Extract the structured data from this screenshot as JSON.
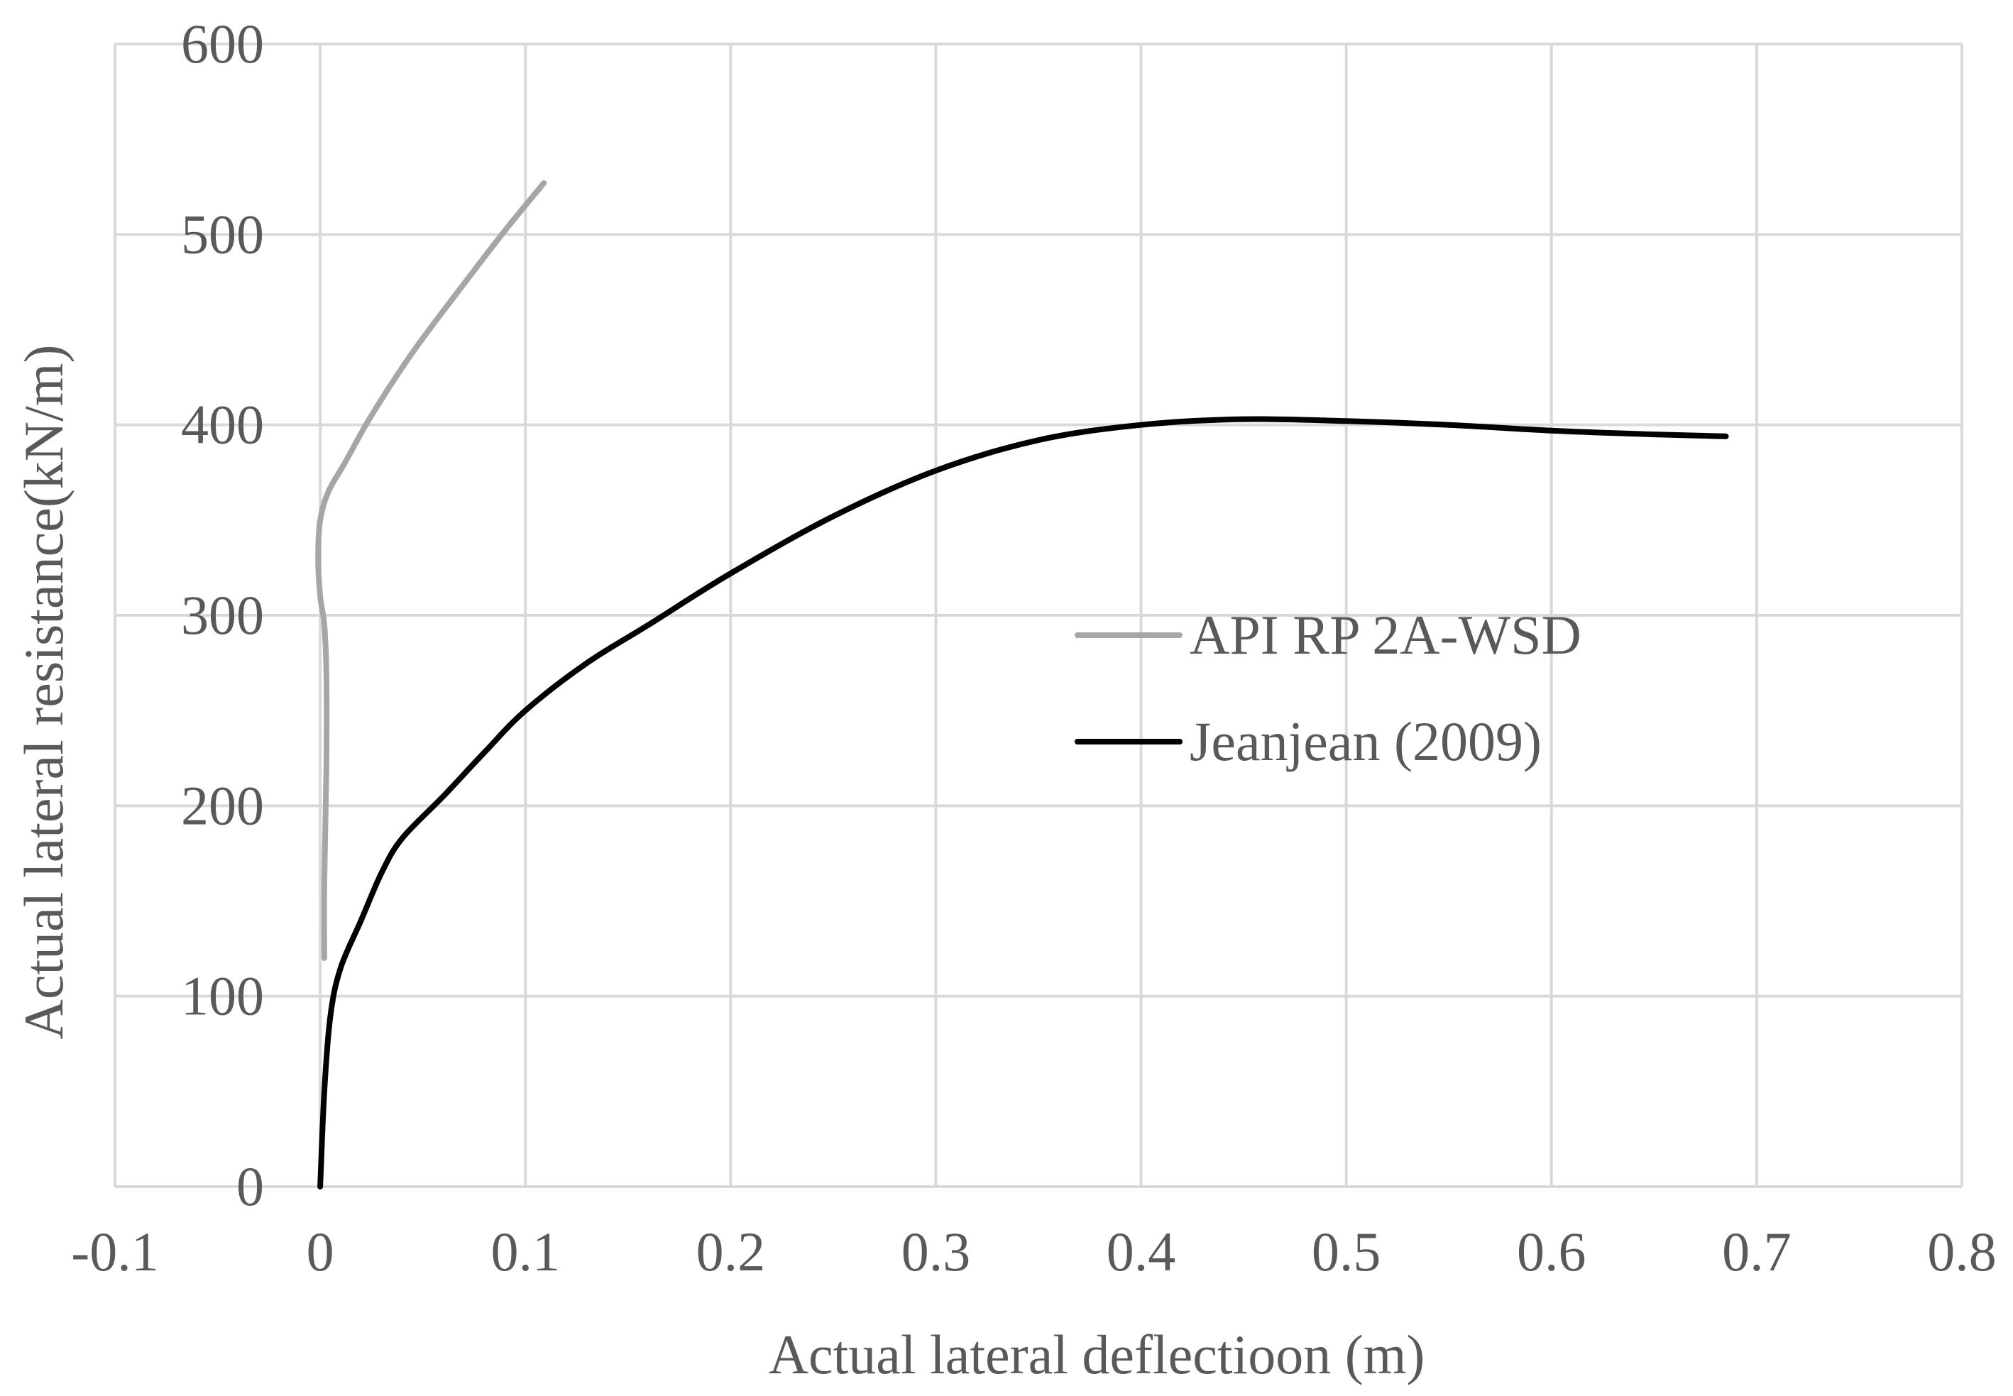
{
  "chart_data": {
    "type": "line",
    "title": "",
    "xlabel": "Actual lateral  deflectioon (m)",
    "ylabel": "Actual lateral resistance(kN/m)",
    "xlim": [
      -0.1,
      0.8
    ],
    "ylim": [
      0,
      600
    ],
    "xticks": [
      -0.1,
      0,
      0.1,
      0.2,
      0.3,
      0.4,
      0.5,
      0.6,
      0.7,
      0.8
    ],
    "xtick_labels": [
      "-0.1",
      "0",
      "0.1",
      "0.2",
      "0.3",
      "0.4",
      "0.5",
      "0.6",
      "0.7",
      "0.8"
    ],
    "yticks": [
      0,
      100,
      200,
      300,
      400,
      500,
      600
    ],
    "ytick_labels": [
      "0",
      "100",
      "200",
      "300",
      "400",
      "500",
      "600"
    ],
    "grid": true,
    "legend_position": "center-right",
    "series": [
      {
        "name": "API RP 2A-WSD",
        "color": "#a6a6a6",
        "x": [
          0.002,
          0.002,
          0.003,
          0.003,
          0.002,
          0.0,
          -0.001,
          0.0,
          0.004,
          0.012,
          0.025,
          0.045,
          0.07,
          0.09,
          0.109
        ],
        "y": [
          120,
          160,
          220,
          270,
          295,
          310,
          330,
          350,
          365,
          380,
          405,
          438,
          474,
          502,
          527
        ]
      },
      {
        "name": "Jeanjean (2009)",
        "color": "#000000",
        "x": [
          0.0,
          0.002,
          0.005,
          0.01,
          0.02,
          0.03,
          0.04,
          0.06,
          0.08,
          0.1,
          0.13,
          0.16,
          0.2,
          0.25,
          0.3,
          0.35,
          0.4,
          0.45,
          0.5,
          0.55,
          0.6,
          0.65,
          0.685
        ],
        "y": [
          0,
          50,
          90,
          115,
          140,
          165,
          183,
          205,
          228,
          250,
          275,
          295,
          322,
          352,
          376,
          392,
          400,
          403,
          402,
          400,
          397,
          395,
          394
        ]
      }
    ]
  }
}
